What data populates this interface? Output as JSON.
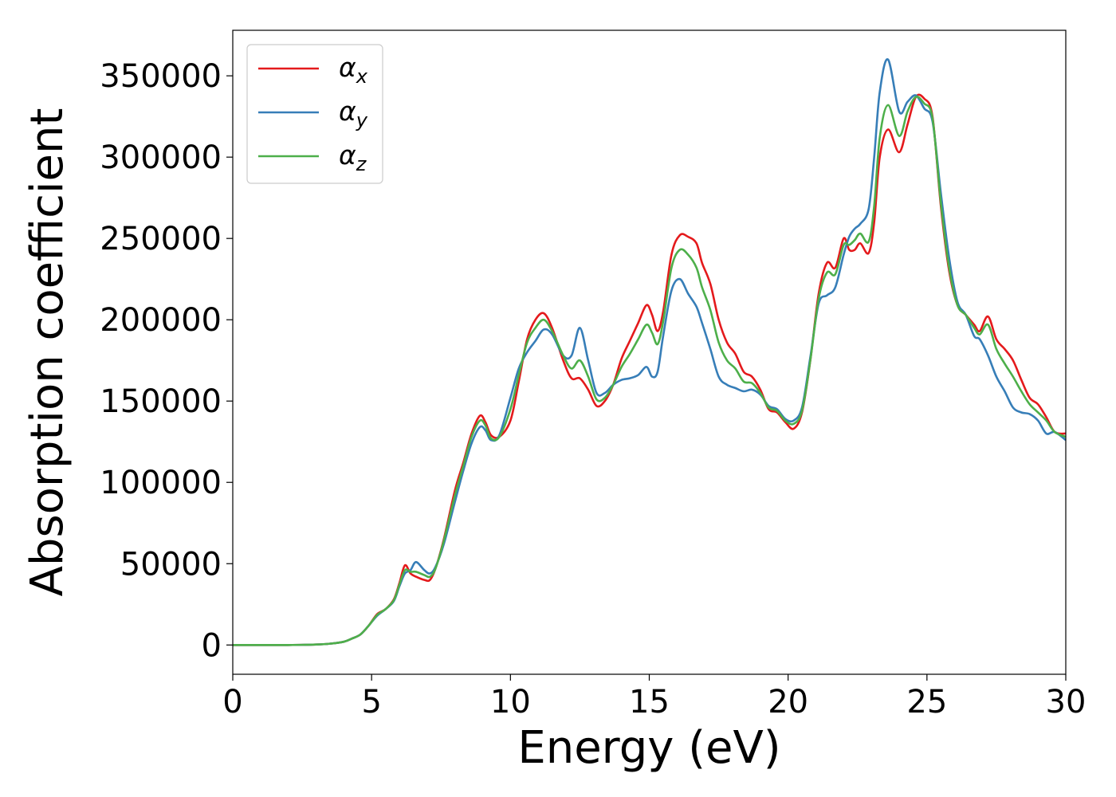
{
  "chart_data": {
    "type": "line",
    "title": "",
    "xlabel": "Energy (eV)",
    "ylabel": "Absorption coefficient",
    "xlim": [
      0,
      30
    ],
    "ylim": [
      -18000,
      378000
    ],
    "x_ticks": [
      0,
      5,
      10,
      15,
      20,
      25,
      30
    ],
    "x_tick_labels": [
      "0",
      "5",
      "10",
      "15",
      "20",
      "25",
      "30"
    ],
    "y_ticks": [
      0,
      50000,
      100000,
      150000,
      200000,
      250000,
      300000,
      350000
    ],
    "y_tick_labels": [
      "0",
      "50000",
      "100000",
      "150000",
      "200000",
      "250000",
      "300000",
      "350000"
    ],
    "grid": false,
    "legend_position": "top-left",
    "series": [
      {
        "name": "α",
        "subscript": "x",
        "color": "#e41a1c",
        "x": [
          0,
          1,
          2,
          3,
          3.5,
          4,
          4.3,
          4.6,
          4.9,
          5.2,
          5.5,
          5.8,
          6.0,
          6.2,
          6.4,
          6.6,
          6.9,
          7.1,
          7.3,
          7.6,
          8.0,
          8.3,
          8.6,
          8.9,
          9.1,
          9.3,
          9.6,
          10.0,
          10.3,
          10.6,
          10.9,
          11.2,
          11.5,
          11.9,
          12.2,
          12.5,
          12.8,
          13.1,
          13.4,
          13.7,
          14.0,
          14.3,
          14.6,
          14.9,
          15.1,
          15.3,
          15.5,
          15.8,
          16.1,
          16.4,
          16.7,
          16.9,
          17.2,
          17.5,
          17.8,
          18.1,
          18.4,
          18.7,
          19.0,
          19.3,
          19.6,
          19.9,
          20.2,
          20.5,
          20.8,
          21.1,
          21.4,
          21.7,
          22.0,
          22.2,
          22.4,
          22.6,
          22.9,
          23.1,
          23.3,
          23.6,
          24.0,
          24.3,
          24.6,
          24.9,
          25.2,
          25.5,
          25.8,
          26.1,
          26.4,
          26.7,
          26.9,
          27.2,
          27.5,
          27.8,
          28.1,
          28.4,
          28.7,
          29.0,
          29.3,
          29.6,
          30.0
        ],
        "y": [
          0,
          0,
          0,
          300,
          800,
          2000,
          4000,
          6500,
          12000,
          19000,
          22000,
          28000,
          38000,
          49000,
          44000,
          42000,
          40000,
          40000,
          47000,
          65000,
          95000,
          112000,
          130000,
          141000,
          137000,
          129000,
          128000,
          138000,
          162000,
          188000,
          200000,
          204000,
          195000,
          175000,
          164000,
          164000,
          157000,
          147000,
          150000,
          160000,
          176000,
          187000,
          198000,
          209000,
          203000,
          193000,
          205000,
          240000,
          252000,
          251000,
          247000,
          235000,
          222000,
          200000,
          186000,
          179000,
          168000,
          165000,
          157000,
          145000,
          143000,
          137000,
          133000,
          143000,
          175000,
          216000,
          235000,
          232000,
          250000,
          243000,
          243000,
          247000,
          241000,
          260000,
          300000,
          317000,
          303000,
          320000,
          337000,
          336000,
          325000,
          270000,
          230000,
          209000,
          203000,
          197000,
          193000,
          202000,
          188000,
          182000,
          175000,
          163000,
          152000,
          148000,
          140000,
          131000,
          130000
        ]
      },
      {
        "name": "α",
        "subscript": "y",
        "color": "#377eb8",
        "x": [
          0,
          1,
          2,
          3,
          3.5,
          4,
          4.3,
          4.6,
          4.9,
          5.2,
          5.5,
          5.8,
          6.0,
          6.2,
          6.4,
          6.6,
          6.9,
          7.1,
          7.3,
          7.6,
          8.0,
          8.3,
          8.6,
          8.9,
          9.1,
          9.3,
          9.6,
          10.0,
          10.3,
          10.6,
          10.9,
          11.2,
          11.5,
          11.9,
          12.2,
          12.5,
          12.8,
          13.1,
          13.4,
          13.7,
          14.0,
          14.3,
          14.6,
          14.9,
          15.1,
          15.3,
          15.5,
          15.8,
          16.1,
          16.4,
          16.7,
          16.9,
          17.2,
          17.5,
          17.8,
          18.1,
          18.4,
          18.7,
          19.0,
          19.3,
          19.6,
          19.9,
          20.2,
          20.5,
          20.8,
          21.1,
          21.4,
          21.7,
          22.0,
          22.2,
          22.4,
          22.6,
          22.9,
          23.1,
          23.3,
          23.6,
          24.0,
          24.3,
          24.6,
          24.9,
          25.2,
          25.5,
          25.8,
          26.1,
          26.4,
          26.7,
          26.9,
          27.2,
          27.5,
          27.8,
          28.1,
          28.4,
          28.7,
          29.0,
          29.3,
          29.6,
          30.0
        ],
        "y": [
          0,
          0,
          0,
          300,
          800,
          2000,
          4000,
          6500,
          12000,
          18000,
          22000,
          27000,
          36000,
          44000,
          46000,
          51000,
          46000,
          44000,
          48000,
          62000,
          88000,
          107000,
          124000,
          134000,
          132000,
          126000,
          129000,
          152000,
          170000,
          180000,
          187000,
          194000,
          191000,
          178000,
          178000,
          195000,
          175000,
          155000,
          155000,
          160000,
          163000,
          164000,
          166000,
          171000,
          165000,
          168000,
          190000,
          218000,
          225000,
          216000,
          208000,
          198000,
          182000,
          165000,
          160000,
          158000,
          156000,
          157000,
          154000,
          147000,
          145000,
          139000,
          138000,
          146000,
          177000,
          210000,
          215000,
          220000,
          240000,
          251000,
          256000,
          259000,
          268000,
          300000,
          340000,
          360000,
          328000,
          334000,
          338000,
          330000,
          322000,
          278000,
          238000,
          211000,
          203000,
          190000,
          188000,
          178000,
          165000,
          156000,
          146000,
          143000,
          142000,
          138000,
          130000,
          131000,
          126000
        ]
      },
      {
        "name": "α",
        "subscript": "z",
        "color": "#4daf4a",
        "x": [
          0,
          1,
          2,
          3,
          3.5,
          4,
          4.3,
          4.6,
          4.9,
          5.2,
          5.5,
          5.8,
          6.0,
          6.2,
          6.4,
          6.6,
          6.9,
          7.1,
          7.3,
          7.6,
          8.0,
          8.3,
          8.6,
          8.9,
          9.1,
          9.3,
          9.6,
          10.0,
          10.3,
          10.6,
          10.9,
          11.2,
          11.5,
          11.9,
          12.2,
          12.5,
          12.8,
          13.1,
          13.4,
          13.7,
          14.0,
          14.3,
          14.6,
          14.9,
          15.1,
          15.3,
          15.5,
          15.8,
          16.1,
          16.4,
          16.7,
          16.9,
          17.2,
          17.5,
          17.8,
          18.1,
          18.4,
          18.7,
          19.0,
          19.3,
          19.6,
          19.9,
          20.2,
          20.5,
          20.8,
          21.1,
          21.4,
          21.7,
          22.0,
          22.2,
          22.4,
          22.6,
          22.9,
          23.1,
          23.3,
          23.6,
          24.0,
          24.3,
          24.6,
          24.9,
          25.2,
          25.5,
          25.8,
          26.1,
          26.4,
          26.7,
          26.9,
          27.2,
          27.5,
          27.8,
          28.1,
          28.4,
          28.7,
          29.0,
          29.3,
          29.6,
          30.0
        ],
        "y": [
          0,
          0,
          0,
          300,
          800,
          2000,
          4000,
          6500,
          12000,
          18500,
          22000,
          27500,
          37000,
          46000,
          45000,
          45000,
          43000,
          42000,
          47000,
          64000,
          92000,
          110000,
          128000,
          138000,
          135000,
          127000,
          128000,
          145000,
          166000,
          186000,
          195000,
          200000,
          193000,
          178000,
          170000,
          175000,
          165000,
          151000,
          152000,
          160000,
          171000,
          179000,
          188000,
          197000,
          192000,
          185000,
          199000,
          232000,
          243000,
          240000,
          232000,
          220000,
          206000,
          186000,
          175000,
          170000,
          162000,
          161000,
          155000,
          146000,
          144000,
          138000,
          136000,
          144000,
          175000,
          213000,
          229000,
          228000,
          246000,
          246000,
          249000,
          253000,
          248000,
          270000,
          312000,
          332000,
          313000,
          328000,
          337000,
          333000,
          324000,
          272000,
          232000,
          209000,
          203000,
          195000,
          191000,
          197000,
          182000,
          173000,
          165000,
          156000,
          148000,
          143000,
          138000,
          131000,
          128000
        ]
      }
    ]
  }
}
